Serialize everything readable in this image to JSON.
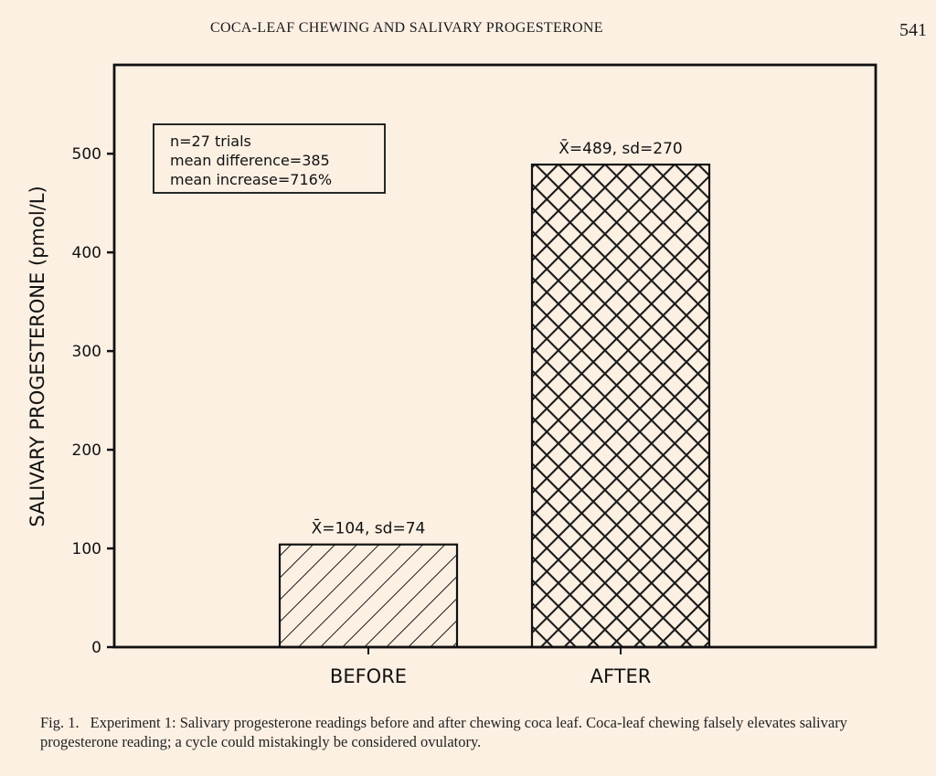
{
  "header": {
    "title": "COCA-LEAF CHEWING AND SALIVARY PROGESTERONE",
    "page_number": "541"
  },
  "chart_data": {
    "type": "bar",
    "categories": [
      "BEFORE",
      "AFTER"
    ],
    "values": [
      104,
      489
    ],
    "bar_labels": [
      "X̄=104, sd=74",
      "X̄=489, sd=270"
    ],
    "bar_patterns": [
      "diagonal-hatch",
      "cross-hatch"
    ],
    "ylabel": "SALIVARY PROGESTERONE (pmol/L)",
    "xlabel": "",
    "ylim": [
      0,
      590
    ],
    "yticks": [
      0,
      100,
      200,
      300,
      400,
      500
    ],
    "grid": false,
    "annotation": [
      "n=27 trials",
      "mean difference=385",
      "mean increase=716%"
    ],
    "annotation_position": "top-left"
  },
  "caption": {
    "label": "Fig. 1.",
    "text": "Experiment 1: Salivary progesterone readings before and after chewing coca leaf. Coca-leaf chewing falsely elevates salivary progesterone reading; a cycle could mistakingly be considered ovulatory."
  }
}
